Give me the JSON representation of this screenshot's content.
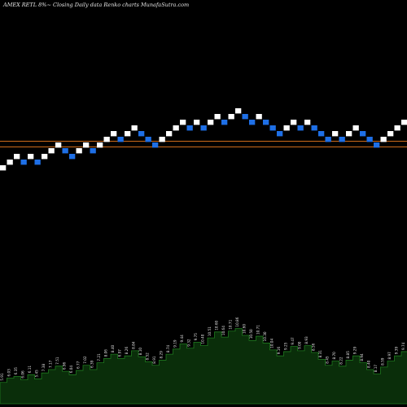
{
  "chart_data": {
    "type": "renko",
    "title": "AMEX  RETL  8%~  Closing Daily data  Renko  charts MunafaSutra.com",
    "colors": {
      "background": "#000000",
      "up_brick": "#ffffff",
      "down_brick": "#1e6fe6",
      "ref_line": "#cc6a1a",
      "volume_fill": "#0a2e0a",
      "volume_edge": "#1f7a1f",
      "text": "#e6e6e6"
    },
    "reference_lines": [
      1,
      0
    ],
    "bricks": [
      {
        "level": 0,
        "dir": "up"
      },
      {
        "level": 1,
        "dir": "up"
      },
      {
        "level": 2,
        "dir": "up"
      },
      {
        "level": 1,
        "dir": "down"
      },
      {
        "level": 2,
        "dir": "up"
      },
      {
        "level": 1,
        "dir": "down"
      },
      {
        "level": 2,
        "dir": "up"
      },
      {
        "level": 3,
        "dir": "up"
      },
      {
        "level": 4,
        "dir": "up"
      },
      {
        "level": 3,
        "dir": "down"
      },
      {
        "level": 2,
        "dir": "down"
      },
      {
        "level": 3,
        "dir": "up"
      },
      {
        "level": 4,
        "dir": "up"
      },
      {
        "level": 3,
        "dir": "down"
      },
      {
        "level": 4,
        "dir": "up"
      },
      {
        "level": 5,
        "dir": "up"
      },
      {
        "level": 6,
        "dir": "up"
      },
      {
        "level": 5,
        "dir": "down"
      },
      {
        "level": 6,
        "dir": "up"
      },
      {
        "level": 7,
        "dir": "up"
      },
      {
        "level": 6,
        "dir": "down"
      },
      {
        "level": 5,
        "dir": "down"
      },
      {
        "level": 4,
        "dir": "down"
      },
      {
        "level": 5,
        "dir": "up"
      },
      {
        "level": 6,
        "dir": "up"
      },
      {
        "level": 7,
        "dir": "up"
      },
      {
        "level": 8,
        "dir": "up"
      },
      {
        "level": 7,
        "dir": "down"
      },
      {
        "level": 8,
        "dir": "up"
      },
      {
        "level": 7,
        "dir": "down"
      },
      {
        "level": 8,
        "dir": "up"
      },
      {
        "level": 9,
        "dir": "up"
      },
      {
        "level": 8,
        "dir": "down"
      },
      {
        "level": 9,
        "dir": "up"
      },
      {
        "level": 10,
        "dir": "up"
      },
      {
        "level": 9,
        "dir": "down"
      },
      {
        "level": 8,
        "dir": "down"
      },
      {
        "level": 9,
        "dir": "up"
      },
      {
        "level": 8,
        "dir": "down"
      },
      {
        "level": 7,
        "dir": "down"
      },
      {
        "level": 6,
        "dir": "down"
      },
      {
        "level": 7,
        "dir": "up"
      },
      {
        "level": 8,
        "dir": "up"
      },
      {
        "level": 7,
        "dir": "down"
      },
      {
        "level": 8,
        "dir": "up"
      },
      {
        "level": 7,
        "dir": "down"
      },
      {
        "level": 6,
        "dir": "down"
      },
      {
        "level": 5,
        "dir": "down"
      },
      {
        "level": 6,
        "dir": "up"
      },
      {
        "level": 5,
        "dir": "down"
      },
      {
        "level": 6,
        "dir": "up"
      },
      {
        "level": 7,
        "dir": "up"
      },
      {
        "level": 6,
        "dir": "down"
      },
      {
        "level": 5,
        "dir": "down"
      },
      {
        "level": 4,
        "dir": "down"
      },
      {
        "level": 5,
        "dir": "up"
      },
      {
        "level": 6,
        "dir": "up"
      },
      {
        "level": 7,
        "dir": "up"
      },
      {
        "level": 8,
        "dir": "up"
      }
    ],
    "volume": {
      "values": [
        2.5,
        3.0,
        3.2,
        2.8,
        3.4,
        2.9,
        3.6,
        4.0,
        4.4,
        3.8,
        3.4,
        3.9,
        4.5,
        4.0,
        4.8,
        5.3,
        5.8,
        5.3,
        5.6,
        6.2,
        5.5,
        4.9,
        4.5,
        5.1,
        5.8,
        6.4,
        7.0,
        6.5,
        7.2,
        6.8,
        7.7,
        8.4,
        7.8,
        8.5,
        8.8,
        8.0,
        7.4,
        7.9,
        7.1,
        6.3,
        5.6,
        6.1,
        6.7,
        6.2,
        6.8,
        6.0,
        5.2,
        4.5,
        5.0,
        4.4,
        5.1,
        5.6,
        4.8,
        4.0,
        3.5,
        4.3,
        5.0,
        5.6,
        6.1
      ],
      "labels": [
        "5.91",
        "6.03",
        "6.35",
        "6.06",
        "6.11",
        "5.45",
        "7.38",
        "7.17",
        "7.51",
        "6.96",
        "6.04",
        "6.77",
        "7.02",
        "6.39",
        "7.21",
        "8.06",
        "8.40",
        "6.97",
        "8.26",
        "8.84",
        "8.10",
        "8.52",
        "8.91",
        "8.29",
        "8.74",
        "9.19",
        "9.44",
        "9.32",
        "9.75",
        "10.40",
        "10.51",
        "10.60",
        "10.64",
        "10.71",
        "10.86",
        "10.60",
        "10.50",
        "10.71",
        "10.30",
        "10.04",
        "9.16",
        "9.25",
        "9.47",
        "9.00",
        "8.93",
        "8.56",
        "8.31",
        "8.45",
        "8.70",
        "8.22",
        "8.85",
        "9.29",
        "8.94",
        "8.40",
        "8.17",
        "8.59",
        "8.97",
        "9.39",
        "9.74"
      ]
    }
  }
}
